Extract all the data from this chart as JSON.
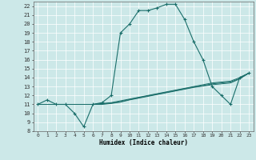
{
  "title": "",
  "xlabel": "Humidex (Indice chaleur)",
  "xlim": [
    -0.5,
    23.5
  ],
  "ylim": [
    8,
    22.5
  ],
  "xticks": [
    0,
    1,
    2,
    3,
    4,
    5,
    6,
    7,
    8,
    9,
    10,
    11,
    12,
    13,
    14,
    15,
    16,
    17,
    18,
    19,
    20,
    21,
    22,
    23
  ],
  "yticks": [
    8,
    9,
    10,
    11,
    12,
    13,
    14,
    15,
    16,
    17,
    18,
    19,
    20,
    21,
    22
  ],
  "bg_color": "#cce8e8",
  "grid_color": "#b0d0d0",
  "line_color": "#1a6e6a",
  "lines": [
    {
      "x": [
        0,
        1,
        2,
        3,
        4,
        5,
        6,
        7,
        8,
        9,
        10,
        11,
        12,
        13,
        14,
        15,
        16,
        17,
        18,
        19,
        20,
        21,
        22,
        23
      ],
      "y": [
        11,
        11.5,
        11,
        11,
        10,
        8.5,
        11,
        11.2,
        12,
        19,
        20,
        21.5,
        21.5,
        21.8,
        22.2,
        22.2,
        20.5,
        18,
        16,
        13,
        12,
        11,
        14,
        14.5
      ],
      "marker": true
    },
    {
      "x": [
        0,
        1,
        2,
        3,
        4,
        5,
        6,
        7,
        8,
        9,
        10,
        11,
        12,
        13,
        14,
        15,
        16,
        17,
        18,
        19,
        20,
        21,
        22,
        23
      ],
      "y": [
        11,
        11,
        11,
        11,
        11,
        11,
        11,
        11.1,
        11.2,
        11.4,
        11.6,
        11.8,
        12.0,
        12.2,
        12.4,
        12.6,
        12.8,
        13.0,
        13.2,
        13.4,
        13.5,
        13.6,
        14.0,
        14.5
      ],
      "marker": false
    },
    {
      "x": [
        0,
        1,
        2,
        3,
        4,
        5,
        6,
        7,
        8,
        9,
        10,
        11,
        12,
        13,
        14,
        15,
        16,
        17,
        18,
        19,
        20,
        21,
        22,
        23
      ],
      "y": [
        11,
        11,
        11,
        11,
        11,
        11,
        11,
        11.05,
        11.15,
        11.3,
        11.55,
        11.75,
        11.95,
        12.15,
        12.35,
        12.55,
        12.75,
        12.95,
        13.1,
        13.3,
        13.4,
        13.5,
        13.9,
        14.5
      ],
      "marker": false
    },
    {
      "x": [
        0,
        1,
        2,
        3,
        4,
        5,
        6,
        7,
        8,
        9,
        10,
        11,
        12,
        13,
        14,
        15,
        16,
        17,
        18,
        19,
        20,
        21,
        22,
        23
      ],
      "y": [
        11,
        11,
        11,
        11,
        11,
        11,
        11,
        11.0,
        11.1,
        11.25,
        11.5,
        11.7,
        11.9,
        12.1,
        12.3,
        12.5,
        12.7,
        12.9,
        13.05,
        13.2,
        13.3,
        13.4,
        13.85,
        14.5
      ],
      "marker": false
    }
  ]
}
